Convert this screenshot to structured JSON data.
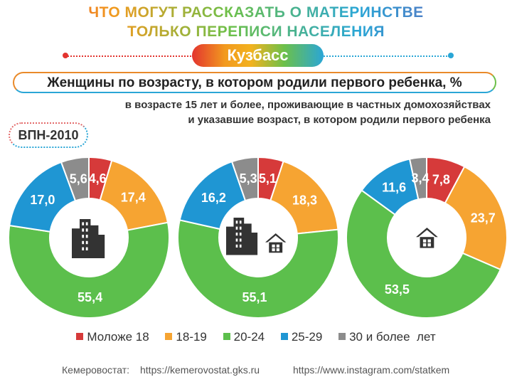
{
  "header": {
    "title_line1": "ЧТО МОГУТ РАССКАЗАТЬ О МАТЕРИНСТВЕ",
    "title_line2": "ТОЛЬКО ПЕРЕПИСИ НАСЕЛЕНИЯ",
    "region": "Кузбасс"
  },
  "subtitle": "Женщины по возрасту, в котором родили первого ребенка, %",
  "note_line1": "в возрасте 15 лет и более, проживающие в частных домохозяйствах",
  "note_line2": "и указавшие возраст, в котором родили первого ребенка",
  "census_badge": "ВПН-2010",
  "colors": {
    "under18": "#d63a3a",
    "18_19": "#f6a432",
    "20_24": "#5cbf4c",
    "25_29": "#1f96d3",
    "30plus": "#8c8c8c",
    "icon": "#333333"
  },
  "chart_data": [
    {
      "type": "pie",
      "icon": "city-buildings-icon",
      "categories": [
        "Моложе 18",
        "18-19",
        "20-24",
        "25-29",
        "30 и более  лет"
      ],
      "values": [
        4.6,
        17.4,
        55.4,
        17.0,
        5.6
      ]
    },
    {
      "type": "pie",
      "icon": "city-and-house-icon",
      "categories": [
        "Моложе 18",
        "18-19",
        "20-24",
        "25-29",
        "30 и более  лет"
      ],
      "values": [
        5.1,
        18.3,
        55.1,
        16.2,
        5.3
      ]
    },
    {
      "type": "pie",
      "icon": "house-icon",
      "categories": [
        "Моложе 18",
        "18-19",
        "20-24",
        "25-29",
        "30 и более  лет"
      ],
      "values": [
        7.8,
        23.7,
        53.5,
        11.6,
        3.4
      ]
    }
  ],
  "legend": [
    "Моложе 18",
    "18-19",
    "20-24",
    "25-29",
    "30 и более  лет"
  ],
  "footer": {
    "source": "Кемеровостат:",
    "website": "https://kemerovostat.gks.ru",
    "instagram": "https://www.instagram.com/statkem"
  }
}
